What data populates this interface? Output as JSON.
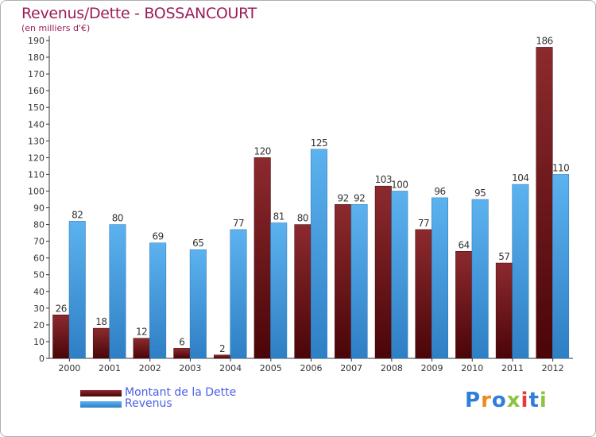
{
  "chart_data": {
    "type": "bar",
    "title": "Revenus/Dette - BOSSANCOURT",
    "subtitle": "(en milliers d'€)",
    "categories": [
      "2000",
      "2001",
      "2002",
      "2003",
      "2004",
      "2005",
      "2006",
      "2007",
      "2008",
      "2009",
      "2010",
      "2011",
      "2012"
    ],
    "series": [
      {
        "name": "Montant de la Dette",
        "color": "#7a1518",
        "values": [
          26,
          18,
          12,
          6,
          2,
          120,
          80,
          92,
          103,
          77,
          64,
          57,
          186
        ]
      },
      {
        "name": "Revenus",
        "color": "#4ba3e6",
        "values": [
          82,
          80,
          69,
          65,
          77,
          81,
          125,
          92,
          100,
          96,
          95,
          104,
          110
        ]
      }
    ],
    "ylim": [
      0,
      190
    ],
    "ytick_step": 10,
    "grid": false,
    "legend_position": "bottom-left"
  },
  "logo": {
    "text": "Proxiti",
    "colors": [
      "#2f7fd8",
      "#f08a1c",
      "#2f7fd8",
      "#8bc53f",
      "#e83a3a",
      "#2f7fd8",
      "#8bc53f"
    ]
  }
}
